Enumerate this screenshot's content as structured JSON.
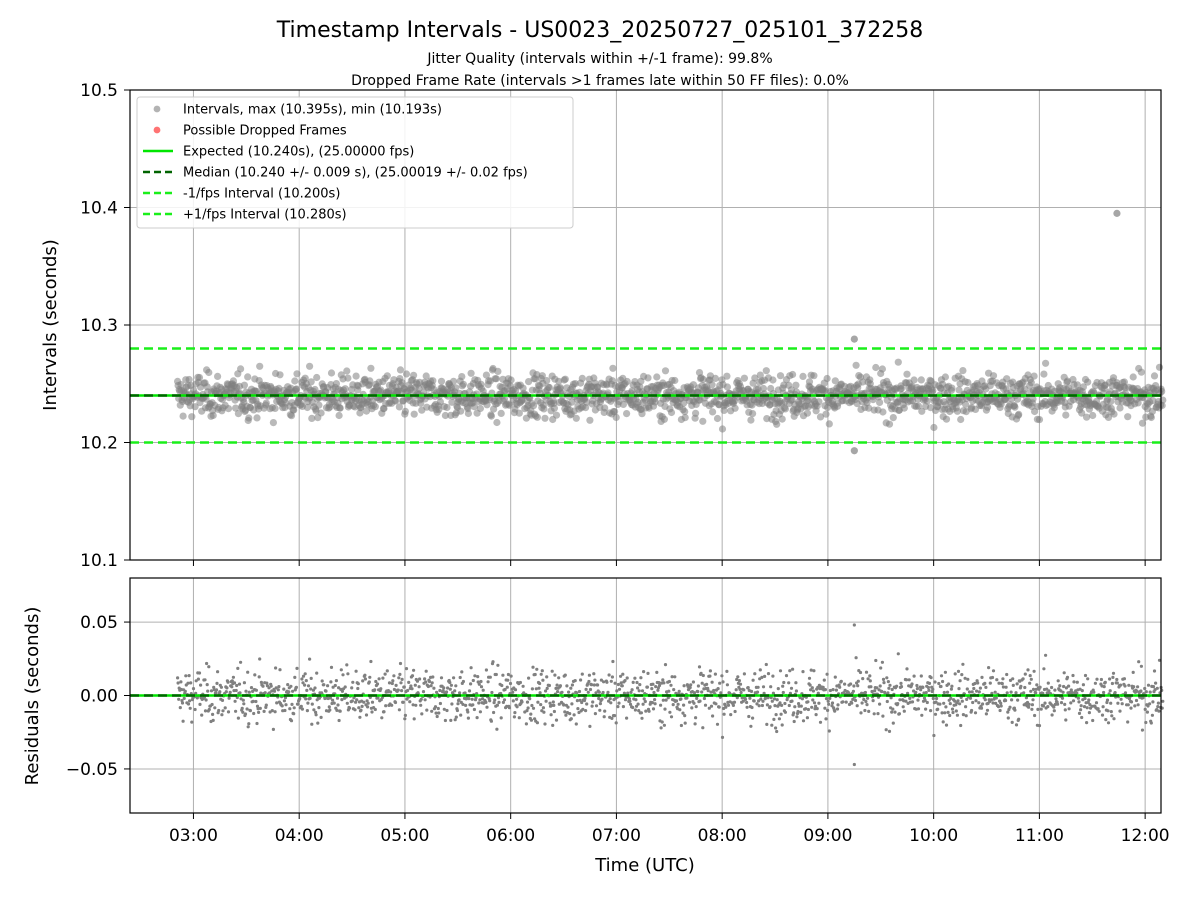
{
  "title": "Timestamp Intervals - US0023_20250727_025101_372258",
  "subtitle_1": "Jitter Quality (intervals within +/-1 frame): 99.8%",
  "subtitle_2": "Dropped Frame Rate (intervals >1 frames late within 50 FF files): 0.0%",
  "colors": {
    "points": "#808080",
    "dropped": "#ff0000",
    "expected": "#00e600",
    "median": "#006400",
    "interval_bounds": "#1aef1a",
    "grid": "#b0b0b0"
  },
  "chart_data": [
    {
      "type": "scatter",
      "ylabel": "Intervals (seconds)",
      "ylim": [
        10.1,
        10.5
      ],
      "yticks": [
        10.1,
        10.2,
        10.3,
        10.4,
        10.5
      ],
      "ytick_labels": [
        "10.1",
        "10.2",
        "10.3",
        "10.4",
        "10.5"
      ],
      "xlim_hours": [
        2.4,
        12.15
      ],
      "grid": true,
      "legend_position": "top-left",
      "legend": [
        "Intervals, max (10.395s), min (10.193s)",
        "Possible Dropped Frames",
        "Expected (10.240s), (25.00000 fps)",
        "Median (10.240 +/- 0.009 s), (25.00019 +/- 0.02 fps)",
        "-1/fps Interval (10.200s)",
        "+1/fps Interval (10.280s)"
      ],
      "series": [
        {
          "name": "Intervals, max (10.395s), min (10.193s)",
          "kind": "points",
          "time_start": "02:51",
          "time_end": "12:10",
          "center": 10.24,
          "std": 0.009,
          "max": 10.395,
          "min": 10.193,
          "notable_points": [
            {
              "time": "11:44",
              "y": 10.395
            },
            {
              "time": "09:15",
              "y": 10.193
            },
            {
              "time": "09:15",
              "y": 10.288
            }
          ]
        },
        {
          "name": "Expected (10.240s), (25.00000 fps)",
          "kind": "hline",
          "y": 10.24,
          "style": "solid"
        },
        {
          "name": "Median (10.240 +/- 0.009 s), (25.00019 +/- 0.02 fps)",
          "kind": "hline",
          "y": 10.24,
          "style": "dashed"
        },
        {
          "name": "-1/fps Interval (10.200s)",
          "kind": "hline",
          "y": 10.2,
          "style": "dashed"
        },
        {
          "name": "+1/fps Interval (10.280s)",
          "kind": "hline",
          "y": 10.28,
          "style": "dashed"
        }
      ]
    },
    {
      "type": "scatter",
      "ylabel": "Residuals (seconds)",
      "xlabel": "Time (UTC)",
      "ylim": [
        -0.08,
        0.08
      ],
      "yticks": [
        -0.05,
        0.0,
        0.05
      ],
      "ytick_labels": [
        "−0.05",
        "0.00",
        "0.05"
      ],
      "xlim_hours": [
        2.4,
        12.15
      ],
      "xticks_hours": [
        3,
        4,
        5,
        6,
        7,
        8,
        9,
        10,
        11,
        12
      ],
      "xtick_labels": [
        "03:00",
        "04:00",
        "05:00",
        "06:00",
        "07:00",
        "08:00",
        "09:00",
        "10:00",
        "11:00",
        "12:00"
      ],
      "grid": true,
      "series": [
        {
          "kind": "points",
          "time_start": "02:51",
          "time_end": "12:10",
          "center": 0.0,
          "std": 0.009
        },
        {
          "kind": "hline",
          "y": 0.0,
          "style": "solid"
        },
        {
          "kind": "hline",
          "y": 0.0,
          "style": "dashed"
        }
      ]
    }
  ]
}
